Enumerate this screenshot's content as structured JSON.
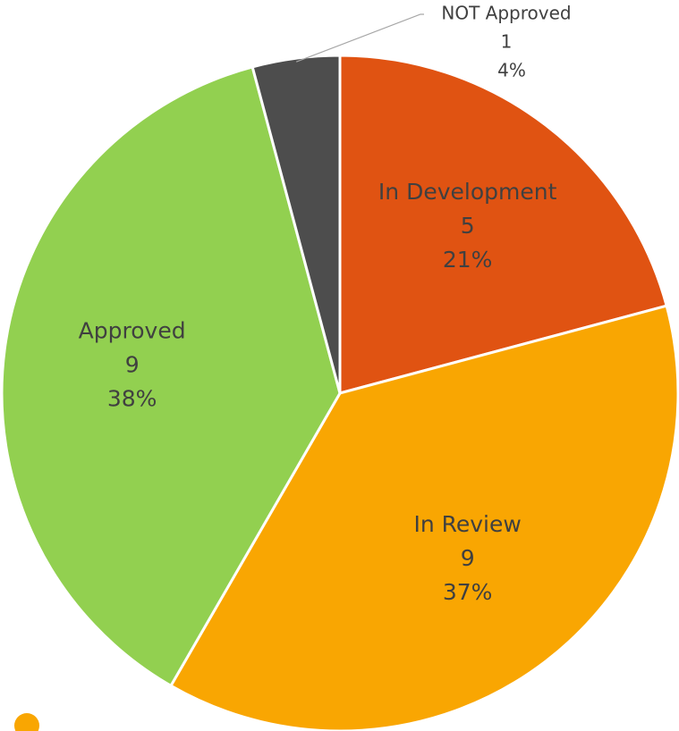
{
  "chart_data": {
    "type": "pie",
    "categories": [
      "In Development",
      "In Review",
      "Approved",
      "NOT Approved"
    ],
    "values": [
      5,
      9,
      9,
      1
    ],
    "percent_labels": [
      "21%",
      "37%",
      "38%",
      "4%"
    ],
    "colors": [
      "#e05312",
      "#f9a602",
      "#92d050",
      "#4d4d4d"
    ]
  }
}
